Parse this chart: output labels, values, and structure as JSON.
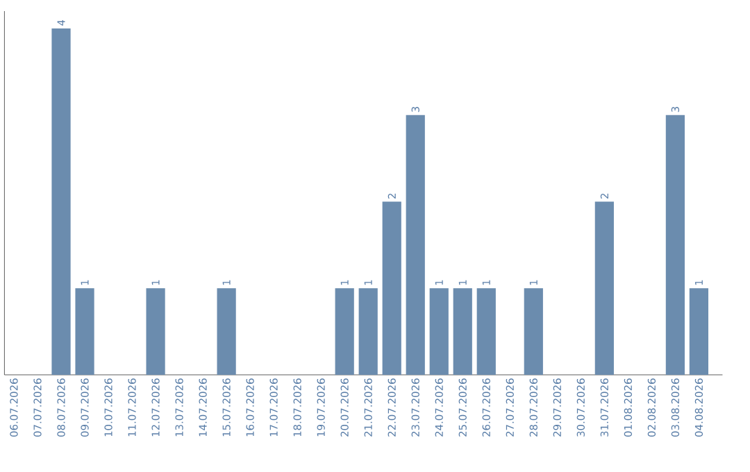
{
  "chart_data": {
    "type": "bar",
    "categories": [
      "06.07.2026",
      "07.07.2026",
      "08.07.2026",
      "09.07.2026",
      "10.07.2026",
      "11.07.2026",
      "12.07.2026",
      "13.07.2026",
      "14.07.2026",
      "15.07.2026",
      "16.07.2026",
      "17.07.2026",
      "18.07.2026",
      "19.07.2026",
      "20.07.2026",
      "21.07.2026",
      "22.07.2026",
      "23.07.2026",
      "24.07.2026",
      "25.07.2026",
      "26.07.2026",
      "27.07.2026",
      "28.07.2026",
      "29.07.2026",
      "30.07.2026",
      "31.07.2026",
      "01.08.2026",
      "02.08.2026",
      "03.08.2026",
      "04.08.2026"
    ],
    "values": [
      0,
      0,
      4,
      1,
      0,
      0,
      1,
      0,
      0,
      1,
      0,
      0,
      0,
      0,
      1,
      1,
      2,
      3,
      1,
      1,
      1,
      0,
      1,
      0,
      0,
      2,
      0,
      0,
      3,
      1
    ],
    "value_labels": [
      null,
      null,
      "4",
      "1",
      null,
      null,
      "1",
      null,
      null,
      "1",
      null,
      null,
      null,
      null,
      "1",
      "1",
      "2",
      "3",
      "1",
      "1",
      "1",
      null,
      "1",
      null,
      null,
      "2",
      null,
      null,
      "3",
      "1"
    ],
    "color": "#6b8cae",
    "ylim": [
      0,
      4.2
    ],
    "tick_labels": "x"
  }
}
